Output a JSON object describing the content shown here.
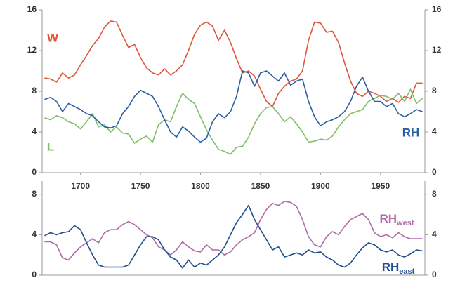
{
  "chart_data": [
    {
      "type": "line",
      "x": [
        1670,
        1675,
        1680,
        1685,
        1690,
        1695,
        1700,
        1705,
        1710,
        1715,
        1720,
        1725,
        1730,
        1735,
        1740,
        1745,
        1750,
        1755,
        1760,
        1765,
        1770,
        1775,
        1780,
        1785,
        1790,
        1795,
        1800,
        1805,
        1810,
        1815,
        1820,
        1825,
        1830,
        1835,
        1840,
        1845,
        1850,
        1855,
        1860,
        1865,
        1870,
        1875,
        1880,
        1885,
        1890,
        1895,
        1900,
        1905,
        1910,
        1915,
        1920,
        1925,
        1930,
        1935,
        1940,
        1945,
        1950,
        1955,
        1960,
        1965,
        1970,
        1975,
        1980,
        1985
      ],
      "xlim": [
        1668,
        1987
      ],
      "xticks": [
        1700,
        1750,
        1800,
        1850,
        1900,
        1950
      ],
      "ylim": [
        0,
        16
      ],
      "yticks": [
        0,
        4,
        8,
        12,
        16
      ],
      "series": [
        {
          "name": "W",
          "color": "#e0553a",
          "values": [
            9.3,
            9.2,
            8.9,
            9.8,
            9.3,
            9.6,
            10.6,
            11.5,
            12.5,
            13.2,
            14.3,
            14.9,
            14.8,
            13.5,
            12.3,
            12.6,
            11.3,
            10.3,
            9.8,
            9.6,
            10.2,
            9.6,
            10.0,
            10.6,
            12.0,
            13.6,
            14.5,
            14.8,
            14.4,
            13.0,
            14.0,
            12.8,
            11.2,
            9.8,
            10.0,
            9.5,
            8.2,
            7.0,
            6.5,
            7.8,
            8.5,
            9.0,
            9.2,
            10.0,
            13.0,
            14.8,
            14.7,
            13.8,
            13.9,
            12.8,
            10.8,
            9.0,
            7.8,
            7.5,
            8.0,
            7.8,
            7.5,
            7.0,
            7.3,
            6.9,
            7.5,
            7.3,
            8.8,
            8.8
          ]
        },
        {
          "name": "L",
          "color": "#7fbf6a",
          "values": [
            5.4,
            5.2,
            5.6,
            5.4,
            5.0,
            4.8,
            4.3,
            5.0,
            5.8,
            4.5,
            4.7,
            4.0,
            4.5,
            3.9,
            3.8,
            2.9,
            3.3,
            3.6,
            3.0,
            4.7,
            5.2,
            5.0,
            6.5,
            7.8,
            7.2,
            6.8,
            5.5,
            4.2,
            3.2,
            2.3,
            2.1,
            1.8,
            2.5,
            2.6,
            3.5,
            4.8,
            5.8,
            6.4,
            6.5,
            5.8,
            5.0,
            5.5,
            4.8,
            4.0,
            3.0,
            3.1,
            3.3,
            3.2,
            3.6,
            4.5,
            5.2,
            5.8,
            6.0,
            6.2,
            7.0,
            7.3,
            7.6,
            7.5,
            7.2,
            7.8,
            7.0,
            8.2,
            6.8,
            7.3
          ]
        },
        {
          "name": "RH",
          "color": "#2a5fa3",
          "values": [
            7.2,
            7.4,
            7.0,
            6.0,
            6.8,
            6.5,
            6.2,
            5.8,
            5.6,
            5.0,
            4.5,
            4.4,
            4.6,
            5.8,
            6.5,
            7.5,
            8.1,
            7.8,
            7.5,
            6.5,
            5.2,
            4.0,
            3.5,
            4.5,
            4.1,
            3.5,
            3.0,
            3.4,
            5.0,
            5.8,
            5.4,
            6.0,
            7.5,
            10.0,
            9.8,
            8.5,
            9.8,
            10.0,
            9.5,
            9.0,
            9.8,
            8.6,
            9.0,
            9.2,
            7.0,
            5.5,
            4.6,
            5.0,
            5.2,
            5.5,
            6.0,
            7.0,
            8.5,
            9.4,
            8.0,
            7.0,
            7.0,
            6.5,
            6.8,
            5.8,
            5.5,
            5.8,
            6.2,
            6.0
          ]
        }
      ]
    },
    {
      "type": "line",
      "x": [
        1670,
        1675,
        1680,
        1685,
        1690,
        1695,
        1700,
        1705,
        1710,
        1715,
        1720,
        1725,
        1730,
        1735,
        1740,
        1745,
        1750,
        1755,
        1760,
        1765,
        1770,
        1775,
        1780,
        1785,
        1790,
        1795,
        1800,
        1805,
        1810,
        1815,
        1820,
        1825,
        1830,
        1835,
        1840,
        1845,
        1850,
        1855,
        1860,
        1865,
        1870,
        1875,
        1880,
        1885,
        1890,
        1895,
        1900,
        1905,
        1910,
        1915,
        1920,
        1925,
        1930,
        1935,
        1940,
        1945,
        1950,
        1955,
        1960,
        1965,
        1970,
        1975,
        1980,
        1985
      ],
      "xlim": [
        1668,
        1987
      ],
      "ylim": [
        0,
        9.3
      ],
      "yticks": [
        0,
        4,
        8
      ],
      "series": [
        {
          "name": "RHwest",
          "color": "#b06aa8",
          "values": [
            3.3,
            3.3,
            3.0,
            1.7,
            1.5,
            2.2,
            2.8,
            3.2,
            3.6,
            3.2,
            4.2,
            4.5,
            4.5,
            5.0,
            5.3,
            5.0,
            4.5,
            4.0,
            3.7,
            2.8,
            2.5,
            2.0,
            2.5,
            3.3,
            2.8,
            2.4,
            2.3,
            3.0,
            2.5,
            2.5,
            2.0,
            2.3,
            3.0,
            3.5,
            3.8,
            4.2,
            5.5,
            6.5,
            7.1,
            6.9,
            7.3,
            7.2,
            6.8,
            5.5,
            3.8,
            3.0,
            2.8,
            3.8,
            4.3,
            4.0,
            4.8,
            5.5,
            5.8,
            6.1,
            5.5,
            4.2,
            3.8,
            4.0,
            3.7,
            4.2,
            3.8,
            3.6,
            3.6,
            3.6
          ]
        },
        {
          "name": "RHeast",
          "color": "#1f4e8f",
          "values": [
            3.9,
            4.2,
            4.0,
            4.2,
            4.3,
            4.9,
            4.5,
            3.2,
            2.0,
            1.0,
            0.8,
            0.8,
            0.8,
            0.8,
            1.0,
            2.0,
            3.0,
            3.8,
            3.8,
            3.5,
            2.5,
            1.8,
            1.5,
            0.7,
            1.5,
            0.8,
            1.2,
            1.0,
            1.5,
            2.0,
            2.8,
            4.0,
            5.2,
            6.0,
            6.9,
            5.5,
            4.5,
            3.5,
            2.5,
            2.8,
            1.8,
            2.0,
            2.2,
            2.0,
            2.5,
            2.2,
            2.3,
            1.8,
            1.5,
            1.0,
            0.8,
            1.2,
            2.0,
            2.7,
            3.2,
            3.0,
            2.5,
            2.3,
            2.5,
            2.0,
            1.8,
            2.1,
            2.5,
            2.4
          ]
        }
      ]
    }
  ]
}
